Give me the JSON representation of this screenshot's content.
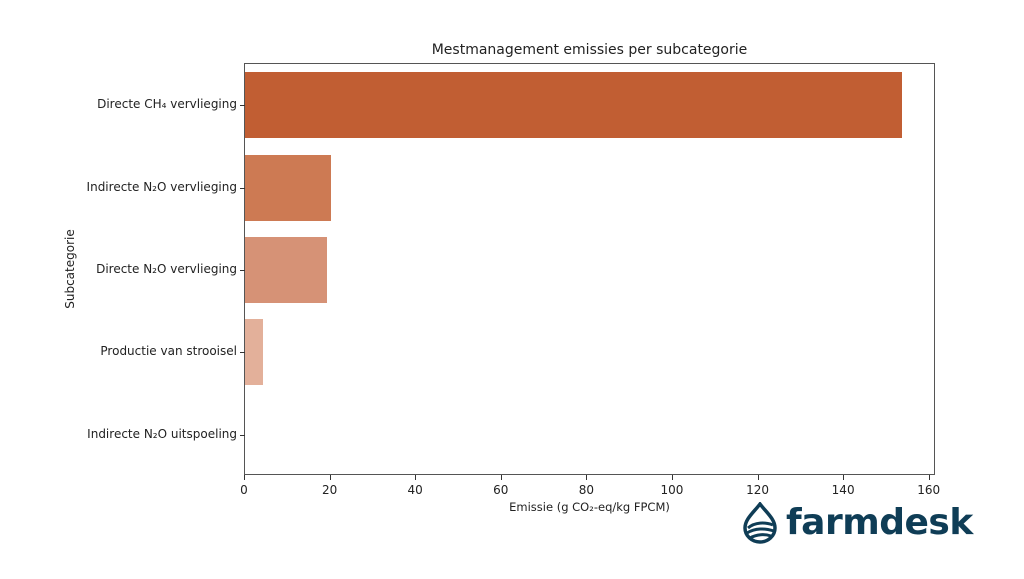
{
  "chart_data": {
    "type": "bar",
    "orientation": "horizontal",
    "title": "Mestmanagement emissies per subcategorie",
    "xlabel": "Emissie (g CO₂-eq/kg FPCM)",
    "ylabel": "Subcategorie",
    "categories": [
      "Directe CH₄ vervlieging",
      "Indirecte N₂O vervlieging",
      "Directe N₂O vervlieging",
      "Productie van strooisel",
      "Indirecte N₂O uitspoeling"
    ],
    "values": [
      153.5,
      20.0,
      19.1,
      4.2,
      0.0
    ],
    "colors": [
      "#c15e33",
      "#cd7a53",
      "#d69276",
      "#e3b09a",
      "#f0d3c6"
    ],
    "xlim": [
      0,
      161
    ],
    "xticks": [
      "0",
      "20",
      "40",
      "60",
      "80",
      "100",
      "120",
      "140",
      "160"
    ],
    "grid": false,
    "legend": null
  },
  "branding": {
    "logo_text": "farmdesk",
    "logo_color": "#0f3d56"
  }
}
